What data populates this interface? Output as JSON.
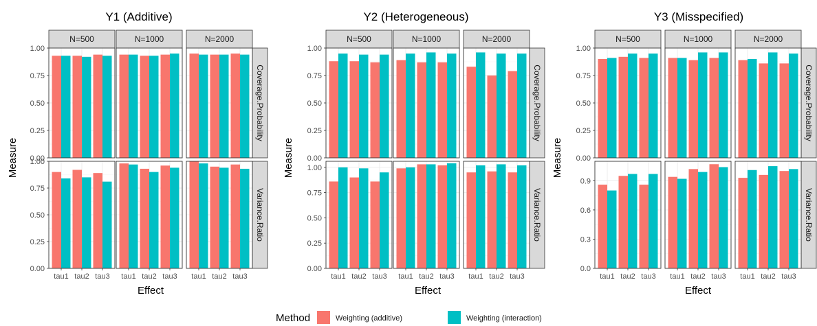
{
  "legend": {
    "title": "Method",
    "items": [
      {
        "label": "Weighting (additive)",
        "color": "#F8766D"
      },
      {
        "label": "Weighting (interaction)",
        "color": "#00BFC4"
      }
    ]
  },
  "chart_data": [
    {
      "type": "bar",
      "title": "Y1 (Additive)",
      "xlabel": "Effect",
      "ylabel": "Measure",
      "facet_cols": [
        "N=500",
        "N=1000",
        "N=2000"
      ],
      "facet_rows": [
        "Coverage.Probability",
        "Variance.Ratio"
      ],
      "categories": [
        "tau1",
        "tau2",
        "tau3"
      ],
      "series_names": [
        "Weighting (additive)",
        "Weighting (interaction)"
      ],
      "rows": [
        {
          "name": "Coverage.Probability",
          "ylim": [
            0,
            1.0
          ],
          "yticks": [
            "0.00",
            "0.25",
            "0.50",
            "0.75",
            "1.00"
          ],
          "panels": [
            {
              "N": "N=500",
              "series": [
                [
                  0.93,
                  0.93,
                  0.94
                ],
                [
                  0.93,
                  0.92,
                  0.93
                ]
              ]
            },
            {
              "N": "N=1000",
              "series": [
                [
                  0.94,
                  0.93,
                  0.94
                ],
                [
                  0.94,
                  0.93,
                  0.95
                ]
              ]
            },
            {
              "N": "N=2000",
              "series": [
                [
                  0.95,
                  0.94,
                  0.95
                ],
                [
                  0.94,
                  0.94,
                  0.94
                ]
              ]
            }
          ]
        },
        {
          "name": "Variance.Ratio",
          "ylim": [
            0,
            1.0
          ],
          "yticks": [
            "0.00",
            "0.25",
            "0.50",
            "0.75",
            "1.00"
          ],
          "panels": [
            {
              "N": "N=500",
              "series": [
                [
                  0.9,
                  0.92,
                  0.89
                ],
                [
                  0.84,
                  0.85,
                  0.81
                ]
              ]
            },
            {
              "N": "N=1000",
              "series": [
                [
                  0.98,
                  0.93,
                  0.96
                ],
                [
                  0.97,
                  0.9,
                  0.94
                ]
              ]
            },
            {
              "N": "N=2000",
              "series": [
                [
                  1.0,
                  0.95,
                  0.97
                ],
                [
                  0.98,
                  0.94,
                  0.93
                ]
              ]
            }
          ]
        }
      ]
    },
    {
      "type": "bar",
      "title": "Y2 (Heterogeneous)",
      "xlabel": "Effect",
      "ylabel": "Measure",
      "facet_cols": [
        "N=500",
        "N=1000",
        "N=2000"
      ],
      "facet_rows": [
        "Coverage.Probability",
        "Variance.Ratio"
      ],
      "categories": [
        "tau1",
        "tau2",
        "tau3"
      ],
      "series_names": [
        "Weighting (additive)",
        "Weighting (interaction)"
      ],
      "rows": [
        {
          "name": "Coverage.Probability",
          "ylim": [
            0,
            1.0
          ],
          "yticks": [
            "0.00",
            "0.25",
            "0.50",
            "0.75",
            "1.00"
          ],
          "panels": [
            {
              "N": "N=500",
              "series": [
                [
                  0.88,
                  0.88,
                  0.87
                ],
                [
                  0.95,
                  0.94,
                  0.94
                ]
              ]
            },
            {
              "N": "N=1000",
              "series": [
                [
                  0.89,
                  0.87,
                  0.87
                ],
                [
                  0.95,
                  0.96,
                  0.95
                ]
              ]
            },
            {
              "N": "N=2000",
              "series": [
                [
                  0.83,
                  0.75,
                  0.79
                ],
                [
                  0.96,
                  0.95,
                  0.95
                ]
              ]
            }
          ]
        },
        {
          "name": "Variance.Ratio",
          "ylim": [
            0,
            1.06
          ],
          "yticks": [
            "0.00",
            "0.25",
            "0.50",
            "0.75",
            "1.00"
          ],
          "panels": [
            {
              "N": "N=500",
              "series": [
                [
                  0.86,
                  0.9,
                  0.86
                ],
                [
                  1.0,
                  0.99,
                  0.95
                ]
              ]
            },
            {
              "N": "N=1000",
              "series": [
                [
                  0.99,
                  1.03,
                  1.02
                ],
                [
                  1.0,
                  1.03,
                  1.04
                ]
              ]
            },
            {
              "N": "N=2000",
              "series": [
                [
                  0.95,
                  0.96,
                  0.95
                ],
                [
                  1.02,
                  1.03,
                  1.02
                ]
              ]
            }
          ]
        }
      ]
    },
    {
      "type": "bar",
      "title": "Y3 (Misspecified)",
      "xlabel": "Effect",
      "ylabel": "Measure",
      "facet_cols": [
        "N=500",
        "N=1000",
        "N=2000"
      ],
      "facet_rows": [
        "Coverage.Probability",
        "Variance.Ratio"
      ],
      "categories": [
        "tau1",
        "tau2",
        "tau3"
      ],
      "series_names": [
        "Weighting (additive)",
        "Weighting (interaction)"
      ],
      "rows": [
        {
          "name": "Coverage.Probability",
          "ylim": [
            0,
            1.0
          ],
          "yticks": [
            "0.00",
            "0.25",
            "0.50",
            "0.75",
            "1.00"
          ],
          "panels": [
            {
              "N": "N=500",
              "series": [
                [
                  0.9,
                  0.92,
                  0.91
                ],
                [
                  0.91,
                  0.95,
                  0.95
                ]
              ]
            },
            {
              "N": "N=1000",
              "series": [
                [
                  0.91,
                  0.89,
                  0.91
                ],
                [
                  0.91,
                  0.96,
                  0.96
                ]
              ]
            },
            {
              "N": "N=2000",
              "series": [
                [
                  0.89,
                  0.86,
                  0.86
                ],
                [
                  0.9,
                  0.96,
                  0.95
                ]
              ]
            }
          ]
        },
        {
          "name": "Variance.Ratio",
          "ylim": [
            0,
            1.1
          ],
          "yticks": [
            "0.0",
            "0.3",
            "0.6",
            "0.9"
          ],
          "panels": [
            {
              "N": "N=500",
              "series": [
                [
                  0.86,
                  0.95,
                  0.86
                ],
                [
                  0.8,
                  0.97,
                  0.97
                ]
              ]
            },
            {
              "N": "N=1000",
              "series": [
                [
                  0.94,
                  1.02,
                  1.07
                ],
                [
                  0.92,
                  0.99,
                  1.04
                ]
              ]
            },
            {
              "N": "N=2000",
              "series": [
                [
                  0.93,
                  0.96,
                  1.0
                ],
                [
                  1.01,
                  1.05,
                  1.02
                ]
              ]
            }
          ]
        }
      ]
    }
  ]
}
